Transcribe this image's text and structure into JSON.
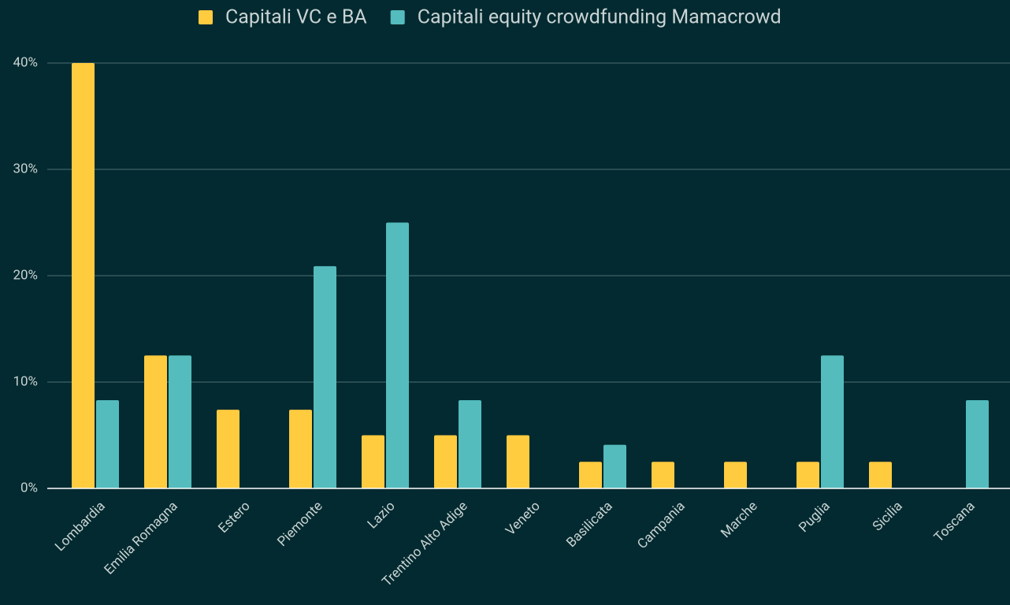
{
  "chart_data": {
    "type": "bar",
    "categories": [
      "Lombardia",
      "Emilia Romagna",
      "Estero",
      "Piemonte",
      "Lazio",
      "Trentino Alto Adige",
      "Veneto",
      "Basilicata",
      "Campania",
      "Marche",
      "Puglia",
      "Sicilia",
      "Toscana"
    ],
    "series": [
      {
        "name": "Capitali VC e BA",
        "color": "#ffcb3f",
        "values": [
          40,
          12.5,
          7.4,
          7.4,
          5,
          5,
          5,
          2.5,
          2.5,
          2.5,
          2.5,
          2.5,
          0
        ]
      },
      {
        "name": "Capitali equity crowdfunding Mamacrowd",
        "color": "#54bcbd",
        "values": [
          8.3,
          12.5,
          0,
          20.9,
          25,
          8.3,
          0,
          4.1,
          0,
          0,
          12.5,
          0,
          8.3
        ]
      }
    ],
    "ylim": [
      0,
      40
    ],
    "yticks": [
      {
        "value": 0,
        "label": "0%"
      },
      {
        "value": 10,
        "label": "10%"
      },
      {
        "value": 20,
        "label": "20%"
      },
      {
        "value": 30,
        "label": "30%"
      },
      {
        "value": 40,
        "label": "40%"
      }
    ],
    "grid": true,
    "legend": "top"
  }
}
